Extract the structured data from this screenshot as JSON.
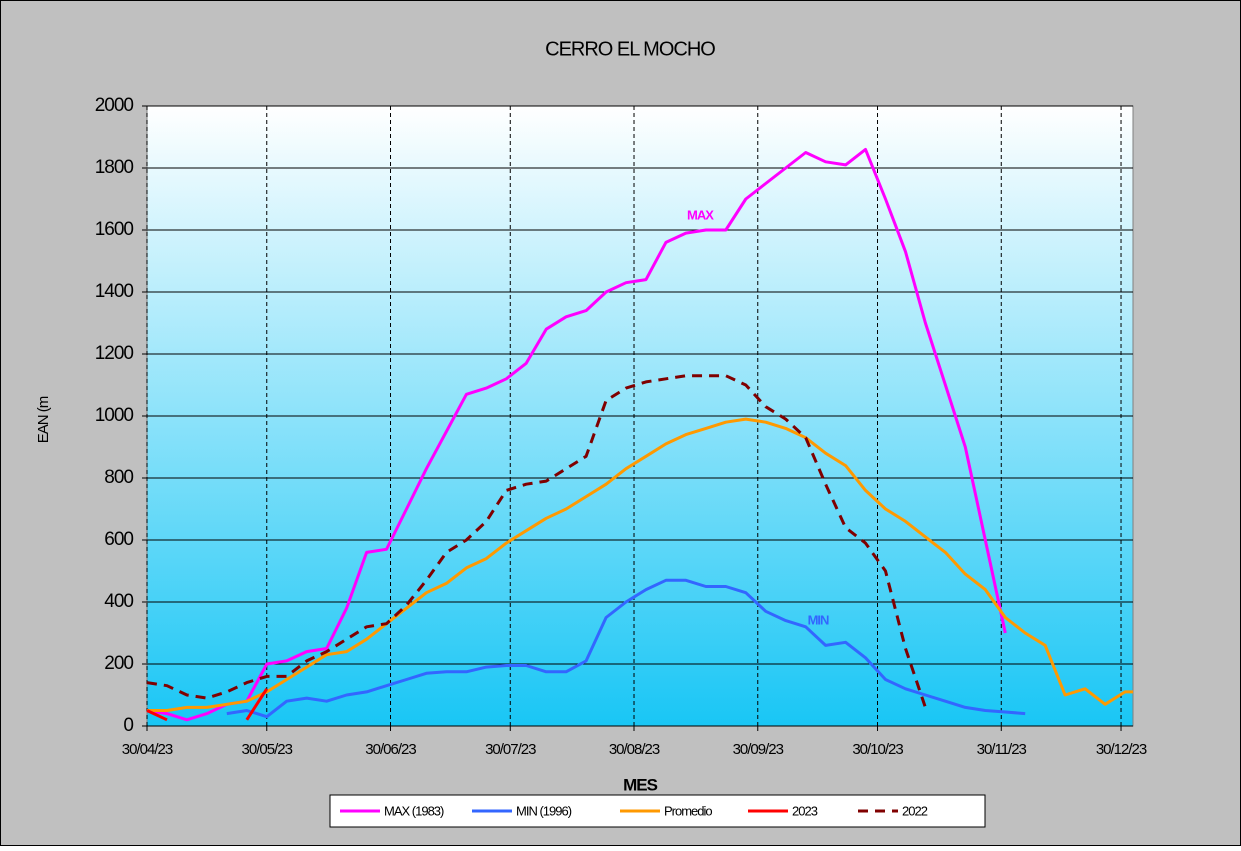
{
  "chart_data": {
    "type": "line",
    "title": "CERRO EL MOCHO",
    "x_label": "MES",
    "y_label": "EAN (m",
    "annotations": [
      "MAX",
      "MIN"
    ],
    "x": [
      "2023-04-30",
      "2023-05-05",
      "2023-05-10",
      "2023-05-15",
      "2023-05-20",
      "2023-05-25",
      "2023-05-30",
      "2023-06-04",
      "2023-06-09",
      "2023-06-14",
      "2023-06-19",
      "2023-06-24",
      "2023-06-29",
      "2023-07-04",
      "2023-07-09",
      "2023-07-14",
      "2023-07-19",
      "2023-07-24",
      "2023-07-29",
      "2023-08-03",
      "2023-08-08",
      "2023-08-13",
      "2023-08-18",
      "2023-08-23",
      "2023-08-28",
      "2023-09-02",
      "2023-09-07",
      "2023-09-12",
      "2023-09-17",
      "2023-09-22",
      "2023-09-27",
      "2023-10-02",
      "2023-10-07",
      "2023-10-12",
      "2023-10-17",
      "2023-10-22",
      "2023-10-27",
      "2023-11-01",
      "2023-11-06",
      "2023-11-11",
      "2023-11-16",
      "2023-11-21",
      "2023-11-26",
      "2023-12-01",
      "2023-12-06",
      "2023-12-11",
      "2023-12-16",
      "2023-12-21",
      "2023-12-26",
      "2023-12-31",
      "2024-01-02"
    ],
    "series": [
      {
        "name": "MAX (1983)",
        "color": "#ff00ff",
        "line_style": "solid",
        "values": [
          50,
          40,
          20,
          40,
          70,
          80,
          200,
          210,
          240,
          250,
          380,
          560,
          570,
          700,
          830,
          950,
          1070,
          1090,
          1120,
          1170,
          1280,
          1320,
          1340,
          1400,
          1430,
          1440,
          1560,
          1590,
          1600,
          1600,
          1700,
          1750,
          1800,
          1850,
          1820,
          1810,
          1860,
          1700,
          1530,
          1300,
          1100,
          900,
          600,
          300,
          null,
          null,
          null,
          null,
          null,
          null,
          null
        ]
      },
      {
        "name": "MIN (1996)",
        "color": "#3366ff",
        "line_style": "solid",
        "values": [
          null,
          null,
          null,
          null,
          40,
          50,
          30,
          80,
          90,
          80,
          100,
          110,
          130,
          150,
          170,
          175,
          175,
          190,
          195,
          195,
          175,
          175,
          210,
          350,
          400,
          440,
          470,
          470,
          450,
          450,
          430,
          370,
          340,
          320,
          260,
          270,
          220,
          150,
          120,
          100,
          80,
          60,
          50,
          45,
          40,
          null,
          null,
          null,
          null,
          null,
          null
        ]
      },
      {
        "name": "Promedio",
        "color": "#ff9900",
        "line_style": "solid",
        "values": [
          50,
          50,
          60,
          60,
          70,
          80,
          110,
          150,
          190,
          230,
          240,
          280,
          330,
          380,
          430,
          460,
          510,
          540,
          590,
          630,
          670,
          700,
          740,
          780,
          830,
          870,
          910,
          940,
          960,
          980,
          990,
          980,
          960,
          930,
          880,
          840,
          760,
          700,
          660,
          610,
          560,
          490,
          440,
          350,
          300,
          260,
          100,
          120,
          70,
          110,
          110
        ]
      },
      {
        "name": "2023",
        "color": "#ff0000",
        "line_style": "solid",
        "values": [
          50,
          20,
          null,
          null,
          null,
          20,
          120,
          null,
          null,
          null,
          null,
          null,
          null,
          null,
          null,
          null,
          null,
          null,
          null,
          null,
          null,
          null,
          null,
          null,
          null,
          null,
          null,
          null,
          null,
          null,
          null,
          null,
          null,
          null,
          null,
          null,
          null,
          null,
          null,
          null,
          null,
          null,
          null,
          null,
          null,
          null,
          null,
          null,
          null,
          null,
          null
        ]
      },
      {
        "name": "2022",
        "color": "#800000",
        "line_style": "dashed",
        "values": [
          140,
          130,
          100,
          90,
          110,
          140,
          160,
          160,
          210,
          240,
          280,
          320,
          330,
          390,
          470,
          560,
          600,
          660,
          760,
          780,
          790,
          830,
          870,
          1050,
          1090,
          1110,
          1120,
          1130,
          1130,
          1130,
          1100,
          1030,
          990,
          930,
          780,
          640,
          590,
          500,
          250,
          60,
          null,
          null,
          null,
          null,
          null,
          null,
          null,
          null,
          null,
          null,
          null
        ]
      }
    ],
    "xlim": [
      "2023-04-30",
      "2024-01-02"
    ],
    "xticks": [
      {
        "value": "2023-04-30",
        "label": "30/04/23"
      },
      {
        "value": "2023-05-30",
        "label": "30/05/23"
      },
      {
        "value": "2023-06-30",
        "label": "30/06/23"
      },
      {
        "value": "2023-07-30",
        "label": "30/07/23"
      },
      {
        "value": "2023-08-30",
        "label": "30/08/23"
      },
      {
        "value": "2023-09-30",
        "label": "30/09/23"
      },
      {
        "value": "2023-10-30",
        "label": "30/10/23"
      },
      {
        "value": "2023-11-30",
        "label": "30/11/23"
      },
      {
        "value": "2023-12-30",
        "label": "30/12/23"
      }
    ],
    "ylim": [
      0,
      2000
    ],
    "yticks": [
      0,
      200,
      400,
      600,
      800,
      1000,
      1200,
      1400,
      1600,
      1800,
      2000
    ],
    "grid": true
  }
}
